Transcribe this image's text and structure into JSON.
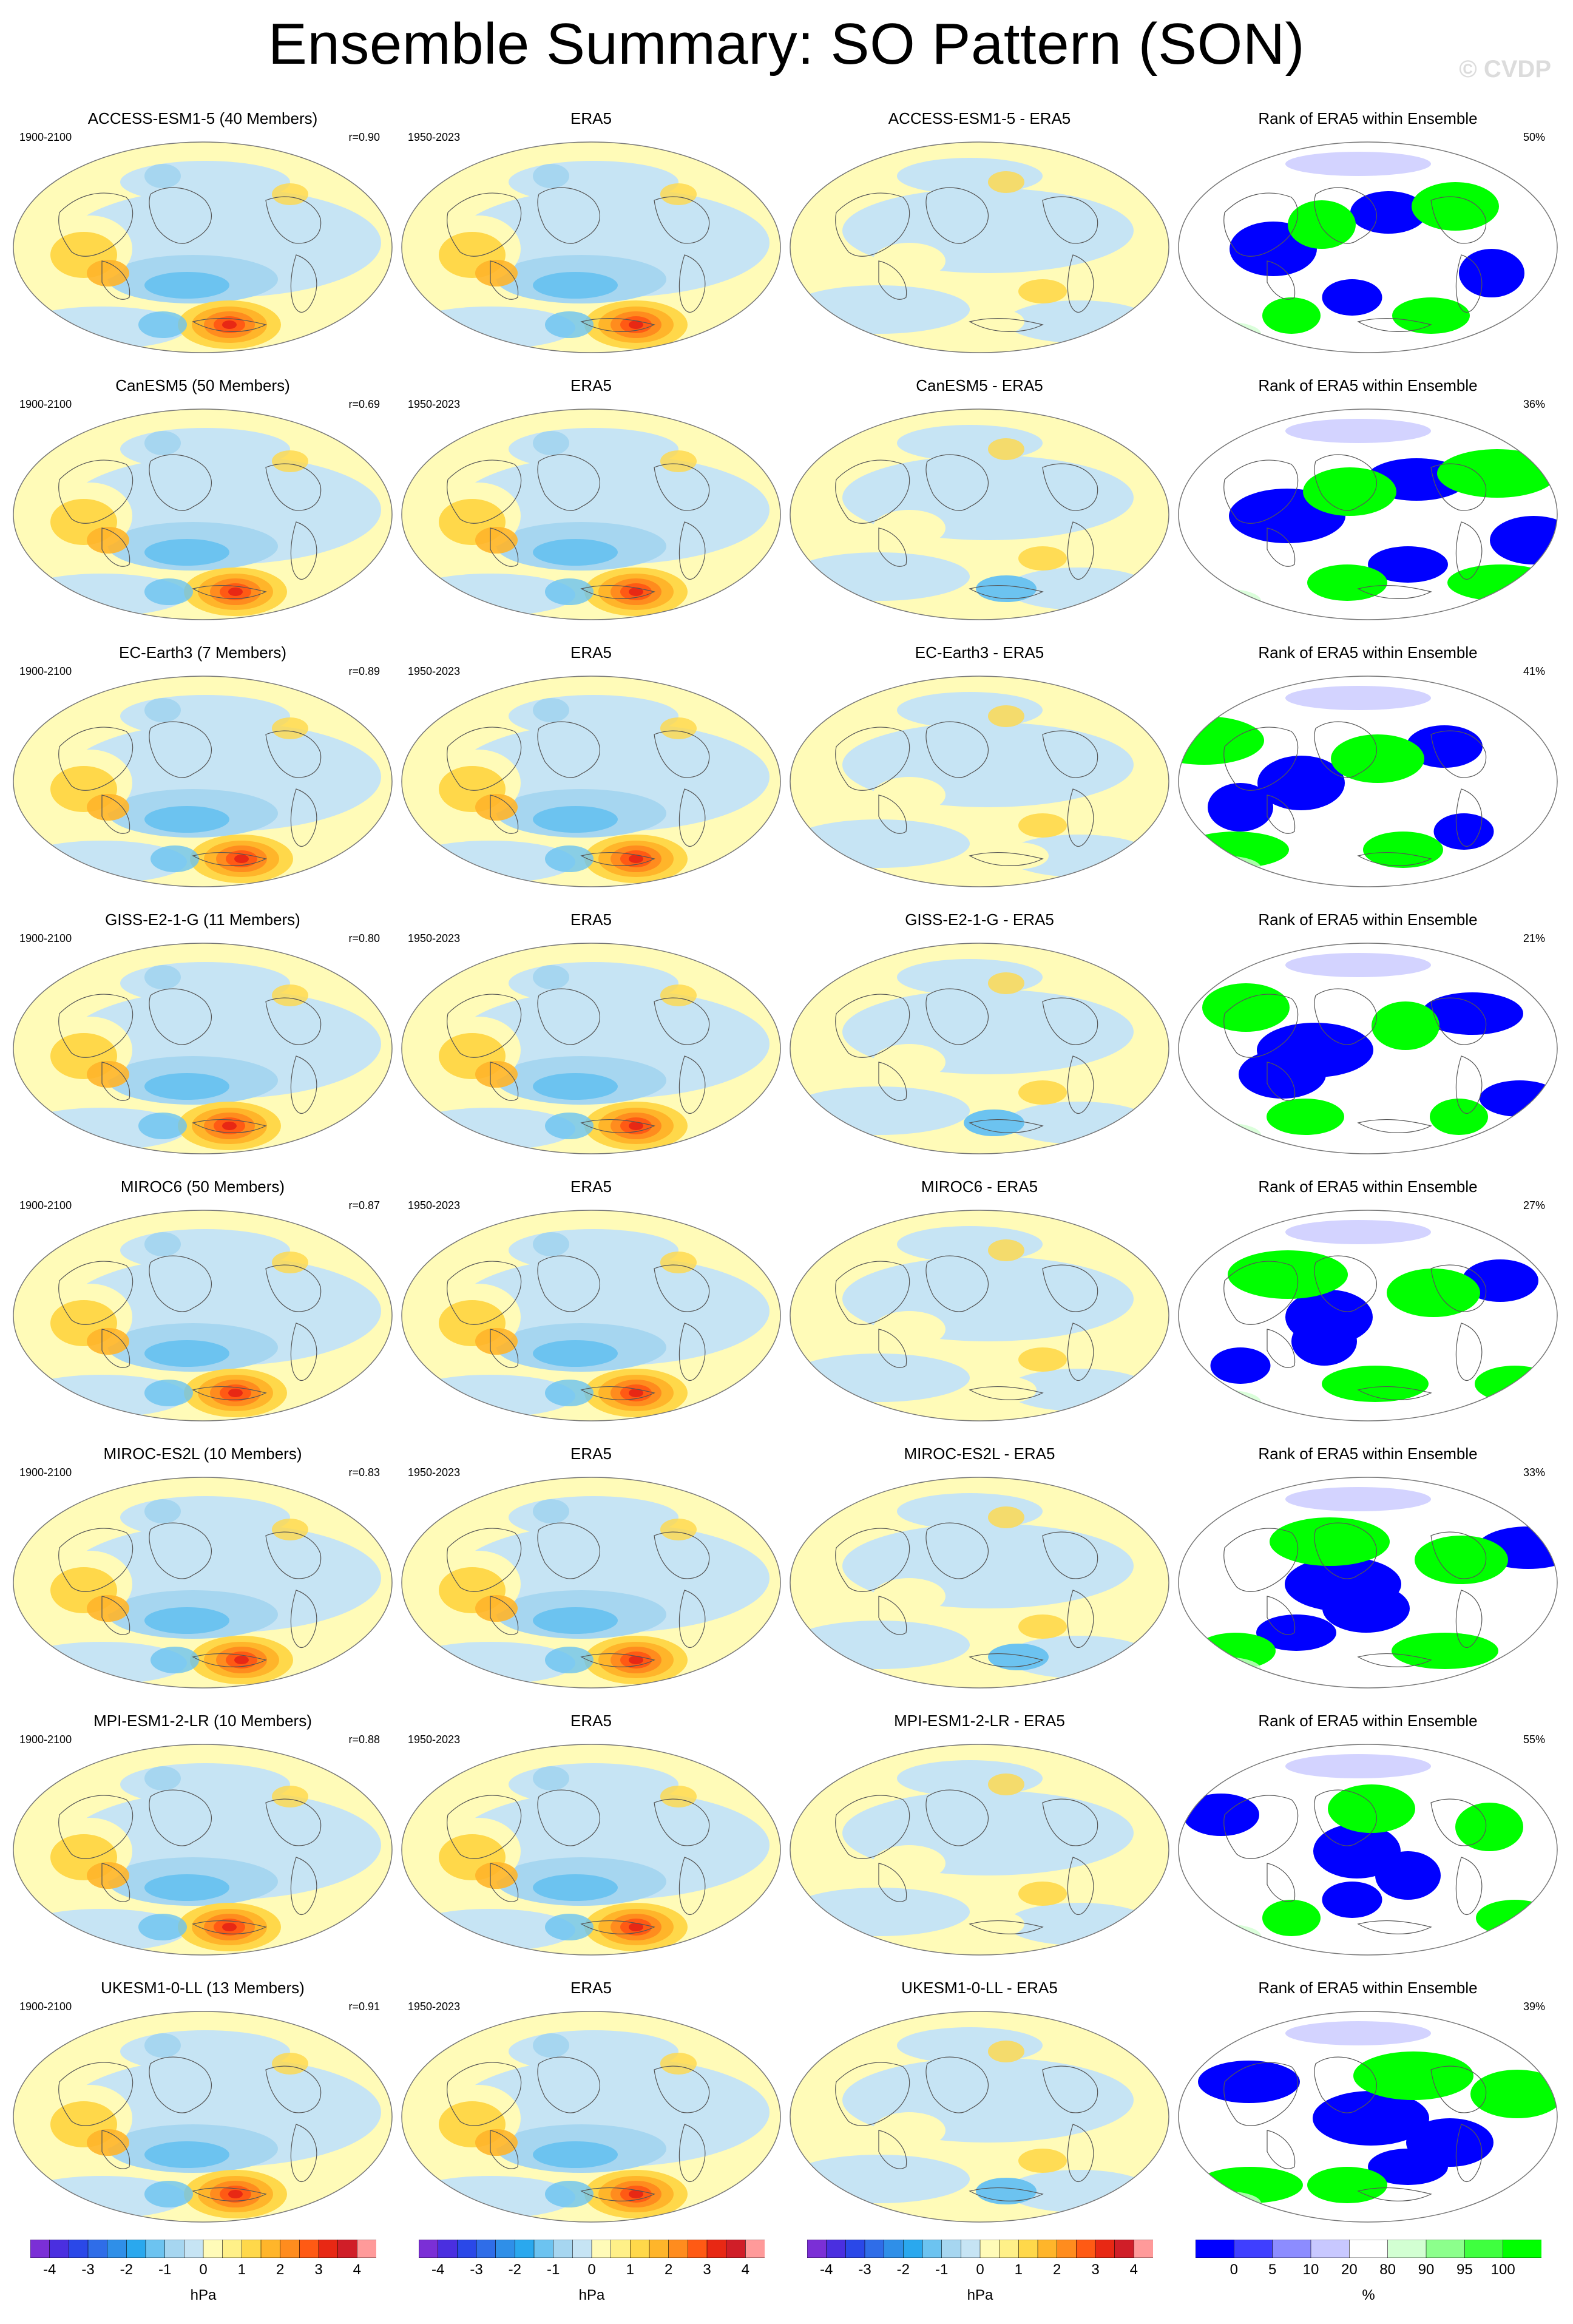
{
  "title": "Ensemble Summary: SO Pattern (SON)",
  "watermark": "© CVDP",
  "rows": [
    {
      "model": "ACCESS-ESM1-5 (40 Members)",
      "diff": "ACCESS-ESM1-5 - ERA5",
      "model_years": "1900-2100",
      "r": "r=0.90",
      "obs_years": "1950-2023",
      "pct": "50%"
    },
    {
      "model": "CanESM5 (50 Members)",
      "diff": "CanESM5 - ERA5",
      "model_years": "1900-2100",
      "r": "r=0.69",
      "obs_years": "1950-2023",
      "pct": "36%"
    },
    {
      "model": "EC-Earth3 (7 Members)",
      "diff": "EC-Earth3 - ERA5",
      "model_years": "1900-2100",
      "r": "r=0.89",
      "obs_years": "1950-2023",
      "pct": "41%"
    },
    {
      "model": "GISS-E2-1-G (11 Members)",
      "diff": "GISS-E2-1-G - ERA5",
      "model_years": "1900-2100",
      "r": "r=0.80",
      "obs_years": "1950-2023",
      "pct": "21%"
    },
    {
      "model": "MIROC6 (50 Members)",
      "diff": "MIROC6 - ERA5",
      "model_years": "1900-2100",
      "r": "r=0.87",
      "obs_years": "1950-2023",
      "pct": "27%"
    },
    {
      "model": "MIROC-ES2L (10 Members)",
      "diff": "MIROC-ES2L - ERA5",
      "model_years": "1900-2100",
      "r": "r=0.83",
      "obs_years": "1950-2023",
      "pct": "33%"
    },
    {
      "model": "MPI-ESM1-2-LR (10 Members)",
      "diff": "MPI-ESM1-2-LR - ERA5",
      "model_years": "1900-2100",
      "r": "r=0.88",
      "obs_years": "1950-2023",
      "pct": "55%"
    },
    {
      "model": "UKESM1-0-LL (13 Members)",
      "diff": "UKESM1-0-LL - ERA5",
      "model_years": "1900-2100",
      "r": "r=0.91",
      "obs_years": "1950-2023",
      "pct": "39%"
    }
  ],
  "obs_title": "ERA5",
  "rank_title": "Rank of ERA5 within Ensemble",
  "colorbars": {
    "hpa_ticks": [
      "-4",
      "-3",
      "-2",
      "-1",
      "0",
      "1",
      "2",
      "3",
      "4"
    ],
    "hpa_unit": "hPa",
    "pct_ticks": [
      "0",
      "5",
      "10",
      "20",
      "80",
      "90",
      "95",
      "100"
    ],
    "pct_unit": "%",
    "hpa_colors": [
      "#7b2fd6",
      "#4a2fe0",
      "#2a48e8",
      "#2f6de8",
      "#2f8fe8",
      "#2aa8ee",
      "#6cc3f0",
      "#a6d6f0",
      "#c6e4f4",
      "#fffbb8",
      "#fff088",
      "#ffd84a",
      "#ffb52a",
      "#ff8c1e",
      "#ff5a14",
      "#e82814",
      "#d01e28",
      "#ff9a9a"
    ],
    "pct_colors": [
      "#0000ff",
      "#3f3fff",
      "#8c8cff",
      "#c8c8ff",
      "#ffffff",
      "#d2ffd2",
      "#8cff8c",
      "#3fff3f",
      "#00ff00"
    ]
  }
}
